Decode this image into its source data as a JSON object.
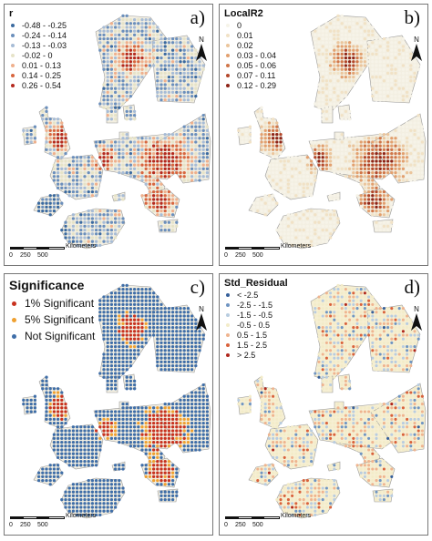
{
  "panels": [
    {
      "id": "a",
      "label": "a)",
      "legend_title": "r",
      "legend_style": "small",
      "legend": [
        {
          "label": "-0.48 - -0.25",
          "color": "#3b6aa0"
        },
        {
          "label": "-0.24 - -0.14",
          "color": "#6b8fbc"
        },
        {
          "label": "-0.13 - -0.03",
          "color": "#a7bcd6"
        },
        {
          "label": "-0.02 - 0",
          "color": "#e6e3c8"
        },
        {
          "label": "0.01 - 0.13",
          "color": "#efb08d"
        },
        {
          "label": "0.14 - 0.25",
          "color": "#d8663f"
        },
        {
          "label": "0.26 - 0.54",
          "color": "#b5291e"
        }
      ]
    },
    {
      "id": "b",
      "label": "b)",
      "legend_title": "LocalR2",
      "legend_style": "small",
      "legend": [
        {
          "label": "0",
          "color": "#f6f3e8"
        },
        {
          "label": "0.01",
          "color": "#f1e2c6"
        },
        {
          "label": "0.02",
          "color": "#ebc59c"
        },
        {
          "label": "0.03 - 0.04",
          "color": "#e2a06f"
        },
        {
          "label": "0.05 - 0.06",
          "color": "#d07649"
        },
        {
          "label": "0.07 - 0.11",
          "color": "#b4482b"
        },
        {
          "label": "0.12 - 0.29",
          "color": "#8e2417"
        }
      ]
    },
    {
      "id": "c",
      "label": "c)",
      "legend_title": "Significance",
      "legend_style": "big",
      "legend": [
        {
          "label": "1% Significant",
          "color": "#c8321f"
        },
        {
          "label": "5% Significant",
          "color": "#efa030"
        },
        {
          "label": "Not Significant",
          "color": "#3f6ea8"
        }
      ]
    },
    {
      "id": "d",
      "label": "d)",
      "legend_title": "Std_Residual",
      "legend_style": "small",
      "legend": [
        {
          "label": "< -2.5",
          "color": "#355f9a"
        },
        {
          "label": "-2.5 - -1.5",
          "color": "#6f95c2"
        },
        {
          "label": "-1.5 - -0.5",
          "color": "#b8cce0"
        },
        {
          "label": "-0.5 - 0.5",
          "color": "#f3ecc9"
        },
        {
          "label": "0.5 - 1.5",
          "color": "#efb48f"
        },
        {
          "label": "1.5 - 2.5",
          "color": "#d9623c"
        },
        {
          "label": "> 2.5",
          "color": "#b0271d"
        }
      ]
    }
  ],
  "north_letter": "N",
  "scale": {
    "ticks": [
      "0",
      "250",
      "500"
    ],
    "unit": "Kilometers"
  },
  "colors": {
    "sea": "#ffffff",
    "land_outline": "#999999"
  }
}
